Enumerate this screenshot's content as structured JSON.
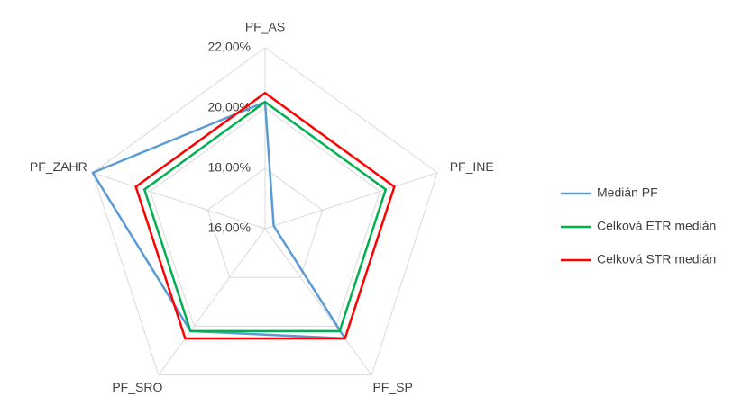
{
  "chart_data": {
    "type": "radar",
    "categories": [
      "PF_AS",
      "PF_INE",
      "PF_SP",
      "PF_SRO",
      "PF_ZAHR"
    ],
    "series": [
      {
        "name": "Medián PF",
        "color": "#5b9bd5",
        "values": [
          20.2,
          16.3,
          20.5,
          20.2,
          22.0
        ]
      },
      {
        "name": "Celková ETR medián",
        "color": "#00b050",
        "values": [
          20.2,
          20.2,
          20.2,
          20.2,
          20.2
        ]
      },
      {
        "name": "Celková STR medián",
        "color": "#ff0000",
        "values": [
          20.5,
          20.5,
          20.5,
          20.5,
          20.5
        ]
      }
    ],
    "rlim": [
      16,
      22
    ],
    "rticks": [
      {
        "value": 16,
        "label": "16,00%"
      },
      {
        "value": 18,
        "label": "18,00%"
      },
      {
        "value": 20,
        "label": "20,00%"
      },
      {
        "value": 22,
        "label": "22,00%"
      }
    ],
    "grid": true,
    "legend": "right"
  }
}
